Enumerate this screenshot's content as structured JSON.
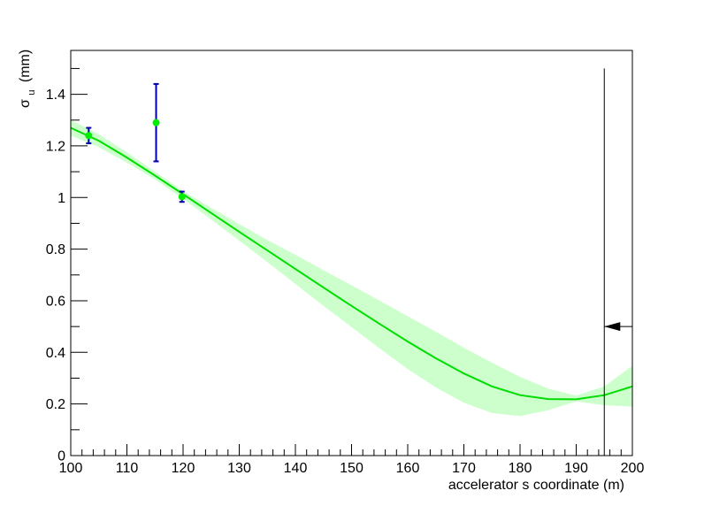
{
  "chart_data": {
    "type": "scatter",
    "title": "",
    "xlabel": "accelerator s coordinate (m)",
    "ylabel": {
      "symbol": "σ",
      "subscript": "u",
      "unit": "(mm)"
    },
    "xlim": [
      100,
      200
    ],
    "ylim": [
      0,
      1.57
    ],
    "x_ticks": [
      100,
      110,
      120,
      130,
      140,
      150,
      160,
      170,
      180,
      190,
      200
    ],
    "y_ticks": [
      0,
      0.2,
      0.4,
      0.6,
      0.8,
      1,
      1.2,
      1.4
    ],
    "grid": false,
    "points": [
      {
        "x": 103.2,
        "y": 1.24,
        "err": 0.03
      },
      {
        "x": 115.2,
        "y": 1.29,
        "err": 0.15
      },
      {
        "x": 119.8,
        "y": 1.003,
        "err": 0.02
      }
    ],
    "fit_curve": {
      "x": [
        100,
        105,
        110,
        115,
        120,
        125,
        130,
        135,
        140,
        145,
        150,
        155,
        160,
        165,
        170,
        175,
        180,
        185,
        190,
        195,
        200
      ],
      "y": [
        1.27,
        1.22,
        1.155,
        1.085,
        1.013,
        0.94,
        0.867,
        0.795,
        0.723,
        0.651,
        0.58,
        0.51,
        0.442,
        0.377,
        0.318,
        0.268,
        0.234,
        0.219,
        0.218,
        0.234,
        0.268
      ],
      "band_upper": [
        1.3,
        1.245,
        1.175,
        1.1,
        1.025,
        0.96,
        0.897,
        0.835,
        0.778,
        0.718,
        0.66,
        0.6,
        0.54,
        0.48,
        0.418,
        0.36,
        0.305,
        0.26,
        0.232,
        0.268,
        0.348
      ],
      "band_lower": [
        1.24,
        1.195,
        1.135,
        1.07,
        0.995,
        0.915,
        0.833,
        0.75,
        0.665,
        0.58,
        0.498,
        0.415,
        0.335,
        0.264,
        0.205,
        0.165,
        0.153,
        0.176,
        0.21,
        0.195,
        0.19
      ]
    },
    "marker": {
      "x": 195,
      "y_top": 1.5,
      "arrow_y": 0.5,
      "direction": "left"
    },
    "colors": {
      "fit": "#00dd00",
      "band": "#ccffcc",
      "points": "#00ee00",
      "errors": "#0000aa",
      "marker": "#000000"
    }
  }
}
